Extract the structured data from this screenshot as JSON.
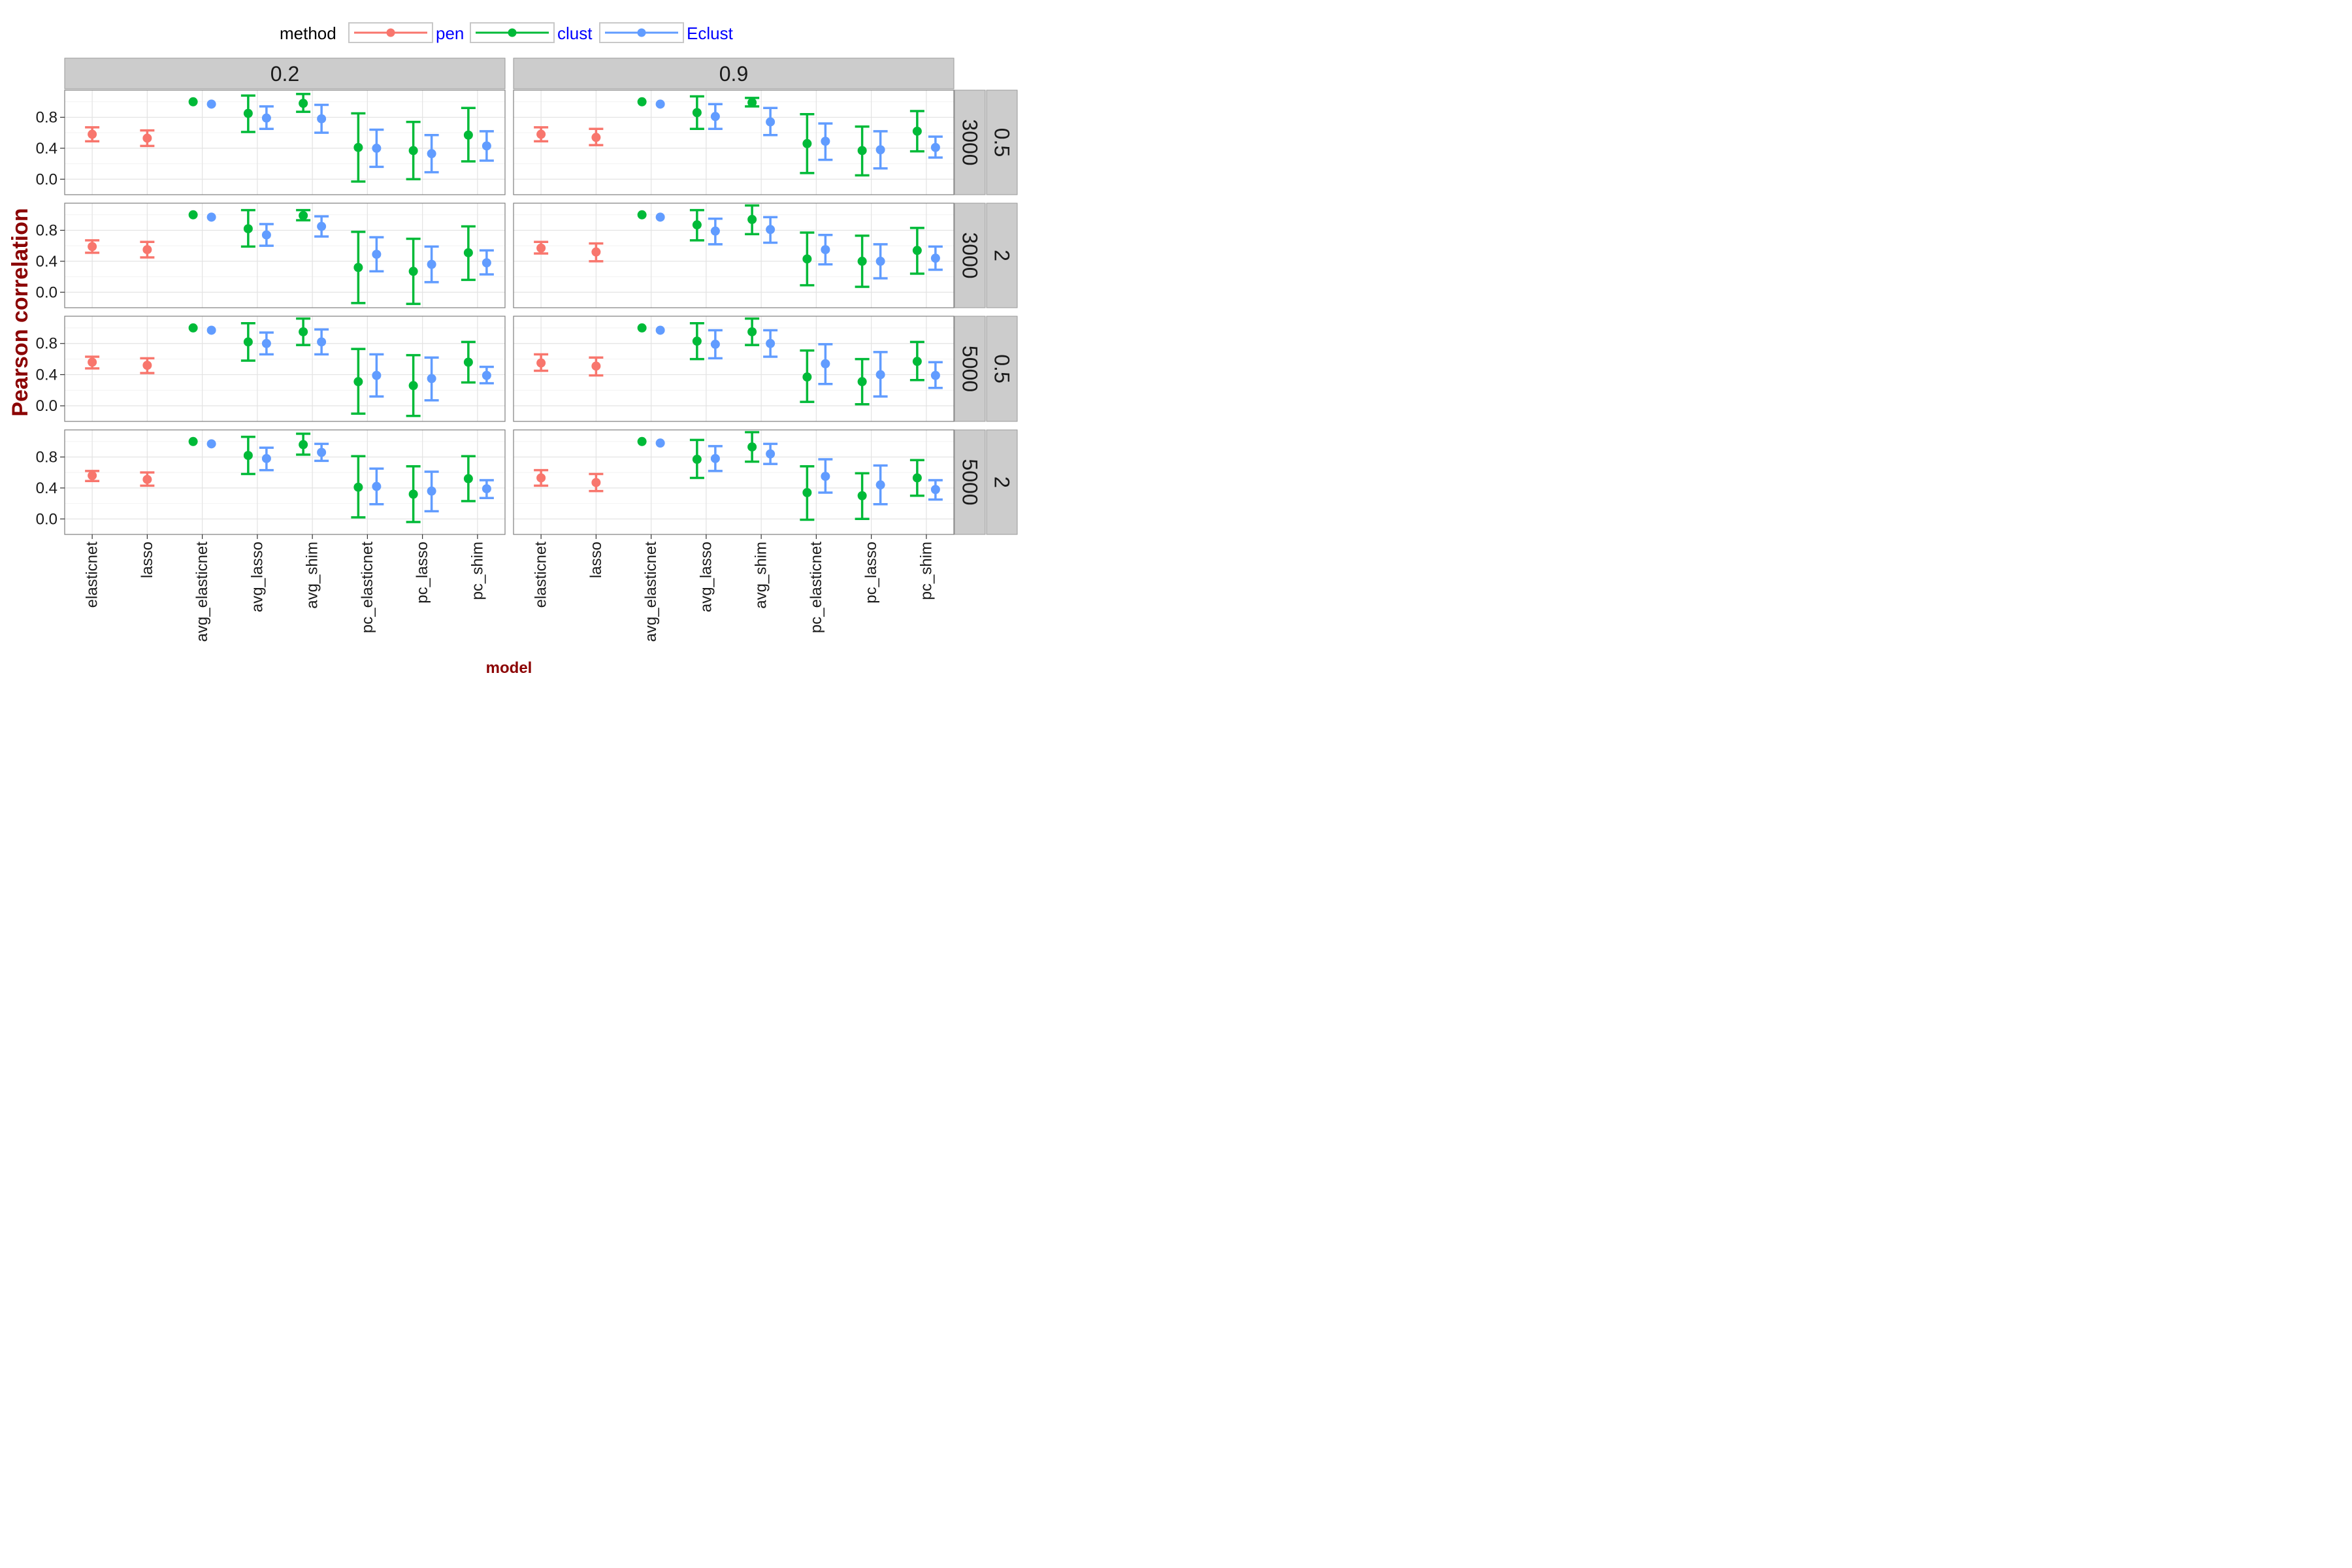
{
  "chart_data": {
    "type": "scatter",
    "subtype": "point-with-errorbars, faceted grid",
    "xlabel": "model",
    "ylabel": "Pearson correlation",
    "ylim": [
      -0.2,
      1.15
    ],
    "y_ticks": [
      "0.0",
      "0.4",
      "0.8"
    ],
    "y_tick_values": [
      0.0,
      0.4,
      0.8
    ],
    "grid": true,
    "legend": {
      "title": "method",
      "position": "top",
      "entries": [
        {
          "label": "pen",
          "color": "#F8766D"
        },
        {
          "label": "clust",
          "color": "#00BA38"
        },
        {
          "label": "Eclust",
          "color": "#619CFF"
        }
      ]
    },
    "categories": [
      "elasticnet",
      "lasso",
      "avg_elasticnet",
      "avg_lasso",
      "avg_shim",
      "pc_elasticnet",
      "pc_lasso",
      "pc_shim"
    ],
    "column_facets": [
      "0.2",
      "0.9"
    ],
    "row_facets": [
      {
        "outer": "0.5",
        "inner": "3000"
      },
      {
        "outer": "2",
        "inner": "3000"
      },
      {
        "outer": "0.5",
        "inner": "5000"
      },
      {
        "outer": "2",
        "inner": "5000"
      }
    ],
    "panels": [
      {
        "row": 0,
        "col": 0,
        "points": [
          {
            "model": "elasticnet",
            "method": "pen",
            "y": 0.58,
            "lo": 0.49,
            "hi": 0.67
          },
          {
            "model": "lasso",
            "method": "pen",
            "y": 0.53,
            "lo": 0.43,
            "hi": 0.63
          },
          {
            "model": "avg_elasticnet",
            "method": "clust",
            "y": 1.0,
            "lo": 1.0,
            "hi": 1.0
          },
          {
            "model": "avg_elasticnet",
            "method": "Eclust",
            "y": 0.97,
            "lo": 0.97,
            "hi": 0.97
          },
          {
            "model": "avg_lasso",
            "method": "clust",
            "y": 0.85,
            "lo": 0.61,
            "hi": 1.08
          },
          {
            "model": "avg_lasso",
            "method": "Eclust",
            "y": 0.79,
            "lo": 0.65,
            "hi": 0.94
          },
          {
            "model": "avg_shim",
            "method": "clust",
            "y": 0.98,
            "lo": 0.87,
            "hi": 1.1
          },
          {
            "model": "avg_shim",
            "method": "Eclust",
            "y": 0.78,
            "lo": 0.6,
            "hi": 0.96
          },
          {
            "model": "pc_elasticnet",
            "method": "clust",
            "y": 0.41,
            "lo": -0.03,
            "hi": 0.85
          },
          {
            "model": "pc_elasticnet",
            "method": "Eclust",
            "y": 0.4,
            "lo": 0.16,
            "hi": 0.64
          },
          {
            "model": "pc_lasso",
            "method": "clust",
            "y": 0.37,
            "lo": 0.0,
            "hi": 0.74
          },
          {
            "model": "pc_lasso",
            "method": "Eclust",
            "y": 0.33,
            "lo": 0.09,
            "hi": 0.57
          },
          {
            "model": "pc_shim",
            "method": "clust",
            "y": 0.57,
            "lo": 0.23,
            "hi": 0.92
          },
          {
            "model": "pc_shim",
            "method": "Eclust",
            "y": 0.43,
            "lo": 0.24,
            "hi": 0.62
          }
        ]
      },
      {
        "row": 0,
        "col": 1,
        "points": [
          {
            "model": "elasticnet",
            "method": "pen",
            "y": 0.58,
            "lo": 0.49,
            "hi": 0.67
          },
          {
            "model": "lasso",
            "method": "pen",
            "y": 0.54,
            "lo": 0.44,
            "hi": 0.65
          },
          {
            "model": "avg_elasticnet",
            "method": "clust",
            "y": 1.0,
            "lo": 1.0,
            "hi": 1.0
          },
          {
            "model": "avg_elasticnet",
            "method": "Eclust",
            "y": 0.97,
            "lo": 0.97,
            "hi": 0.97
          },
          {
            "model": "avg_lasso",
            "method": "clust",
            "y": 0.86,
            "lo": 0.65,
            "hi": 1.07
          },
          {
            "model": "avg_lasso",
            "method": "Eclust",
            "y": 0.81,
            "lo": 0.65,
            "hi": 0.97
          },
          {
            "model": "avg_shim",
            "method": "clust",
            "y": 0.99,
            "lo": 0.94,
            "hi": 1.05
          },
          {
            "model": "avg_shim",
            "method": "Eclust",
            "y": 0.74,
            "lo": 0.57,
            "hi": 0.92
          },
          {
            "model": "pc_elasticnet",
            "method": "clust",
            "y": 0.46,
            "lo": 0.08,
            "hi": 0.84
          },
          {
            "model": "pc_elasticnet",
            "method": "Eclust",
            "y": 0.49,
            "lo": 0.25,
            "hi": 0.72
          },
          {
            "model": "pc_lasso",
            "method": "clust",
            "y": 0.37,
            "lo": 0.05,
            "hi": 0.68
          },
          {
            "model": "pc_lasso",
            "method": "Eclust",
            "y": 0.38,
            "lo": 0.14,
            "hi": 0.62
          },
          {
            "model": "pc_shim",
            "method": "clust",
            "y": 0.62,
            "lo": 0.36,
            "hi": 0.88
          },
          {
            "model": "pc_shim",
            "method": "Eclust",
            "y": 0.41,
            "lo": 0.28,
            "hi": 0.55
          }
        ]
      },
      {
        "row": 1,
        "col": 0,
        "points": [
          {
            "model": "elasticnet",
            "method": "pen",
            "y": 0.59,
            "lo": 0.51,
            "hi": 0.67
          },
          {
            "model": "lasso",
            "method": "pen",
            "y": 0.55,
            "lo": 0.45,
            "hi": 0.65
          },
          {
            "model": "avg_elasticnet",
            "method": "clust",
            "y": 1.0,
            "lo": 1.0,
            "hi": 1.0
          },
          {
            "model": "avg_elasticnet",
            "method": "Eclust",
            "y": 0.97,
            "lo": 0.97,
            "hi": 0.97
          },
          {
            "model": "avg_lasso",
            "method": "clust",
            "y": 0.82,
            "lo": 0.59,
            "hi": 1.06
          },
          {
            "model": "avg_lasso",
            "method": "Eclust",
            "y": 0.74,
            "lo": 0.6,
            "hi": 0.88
          },
          {
            "model": "avg_shim",
            "method": "clust",
            "y": 0.99,
            "lo": 0.93,
            "hi": 1.06
          },
          {
            "model": "avg_shim",
            "method": "Eclust",
            "y": 0.85,
            "lo": 0.72,
            "hi": 0.98
          },
          {
            "model": "pc_elasticnet",
            "method": "clust",
            "y": 0.32,
            "lo": -0.14,
            "hi": 0.78
          },
          {
            "model": "pc_elasticnet",
            "method": "Eclust",
            "y": 0.49,
            "lo": 0.27,
            "hi": 0.71
          },
          {
            "model": "pc_lasso",
            "method": "clust",
            "y": 0.27,
            "lo": -0.15,
            "hi": 0.69
          },
          {
            "model": "pc_lasso",
            "method": "Eclust",
            "y": 0.36,
            "lo": 0.13,
            "hi": 0.59
          },
          {
            "model": "pc_shim",
            "method": "clust",
            "y": 0.51,
            "lo": 0.16,
            "hi": 0.85
          },
          {
            "model": "pc_shim",
            "method": "Eclust",
            "y": 0.38,
            "lo": 0.23,
            "hi": 0.54
          }
        ]
      },
      {
        "row": 1,
        "col": 1,
        "points": [
          {
            "model": "elasticnet",
            "method": "pen",
            "y": 0.57,
            "lo": 0.5,
            "hi": 0.65
          },
          {
            "model": "lasso",
            "method": "pen",
            "y": 0.52,
            "lo": 0.4,
            "hi": 0.63
          },
          {
            "model": "avg_elasticnet",
            "method": "clust",
            "y": 1.0,
            "lo": 1.0,
            "hi": 1.0
          },
          {
            "model": "avg_elasticnet",
            "method": "Eclust",
            "y": 0.97,
            "lo": 0.97,
            "hi": 0.97
          },
          {
            "model": "avg_lasso",
            "method": "clust",
            "y": 0.87,
            "lo": 0.67,
            "hi": 1.06
          },
          {
            "model": "avg_lasso",
            "method": "Eclust",
            "y": 0.79,
            "lo": 0.62,
            "hi": 0.95
          },
          {
            "model": "avg_shim",
            "method": "clust",
            "y": 0.94,
            "lo": 0.75,
            "hi": 1.12
          },
          {
            "model": "avg_shim",
            "method": "Eclust",
            "y": 0.81,
            "lo": 0.64,
            "hi": 0.97
          },
          {
            "model": "pc_elasticnet",
            "method": "clust",
            "y": 0.43,
            "lo": 0.09,
            "hi": 0.77
          },
          {
            "model": "pc_elasticnet",
            "method": "Eclust",
            "y": 0.55,
            "lo": 0.36,
            "hi": 0.74
          },
          {
            "model": "pc_lasso",
            "method": "clust",
            "y": 0.4,
            "lo": 0.07,
            "hi": 0.73
          },
          {
            "model": "pc_lasso",
            "method": "Eclust",
            "y": 0.4,
            "lo": 0.18,
            "hi": 0.62
          },
          {
            "model": "pc_shim",
            "method": "clust",
            "y": 0.54,
            "lo": 0.24,
            "hi": 0.83
          },
          {
            "model": "pc_shim",
            "method": "Eclust",
            "y": 0.44,
            "lo": 0.29,
            "hi": 0.59
          }
        ]
      },
      {
        "row": 2,
        "col": 0,
        "points": [
          {
            "model": "elasticnet",
            "method": "pen",
            "y": 0.56,
            "lo": 0.48,
            "hi": 0.63
          },
          {
            "model": "lasso",
            "method": "pen",
            "y": 0.52,
            "lo": 0.42,
            "hi": 0.61
          },
          {
            "model": "avg_elasticnet",
            "method": "clust",
            "y": 1.0,
            "lo": 1.0,
            "hi": 1.0
          },
          {
            "model": "avg_elasticnet",
            "method": "Eclust",
            "y": 0.97,
            "lo": 0.97,
            "hi": 0.97
          },
          {
            "model": "avg_lasso",
            "method": "clust",
            "y": 0.82,
            "lo": 0.58,
            "hi": 1.06
          },
          {
            "model": "avg_lasso",
            "method": "Eclust",
            "y": 0.8,
            "lo": 0.66,
            "hi": 0.94
          },
          {
            "model": "avg_shim",
            "method": "clust",
            "y": 0.95,
            "lo": 0.78,
            "hi": 1.12
          },
          {
            "model": "avg_shim",
            "method": "Eclust",
            "y": 0.82,
            "lo": 0.66,
            "hi": 0.98
          },
          {
            "model": "pc_elasticnet",
            "method": "clust",
            "y": 0.31,
            "lo": -0.1,
            "hi": 0.73
          },
          {
            "model": "pc_elasticnet",
            "method": "Eclust",
            "y": 0.39,
            "lo": 0.12,
            "hi": 0.66
          },
          {
            "model": "pc_lasso",
            "method": "clust",
            "y": 0.26,
            "lo": -0.13,
            "hi": 0.65
          },
          {
            "model": "pc_lasso",
            "method": "Eclust",
            "y": 0.35,
            "lo": 0.07,
            "hi": 0.62
          },
          {
            "model": "pc_shim",
            "method": "clust",
            "y": 0.56,
            "lo": 0.3,
            "hi": 0.82
          },
          {
            "model": "pc_shim",
            "method": "Eclust",
            "y": 0.39,
            "lo": 0.29,
            "hi": 0.5
          }
        ]
      },
      {
        "row": 2,
        "col": 1,
        "points": [
          {
            "model": "elasticnet",
            "method": "pen",
            "y": 0.55,
            "lo": 0.45,
            "hi": 0.66
          },
          {
            "model": "lasso",
            "method": "pen",
            "y": 0.51,
            "lo": 0.39,
            "hi": 0.62
          },
          {
            "model": "avg_elasticnet",
            "method": "clust",
            "y": 1.0,
            "lo": 1.0,
            "hi": 1.0
          },
          {
            "model": "avg_elasticnet",
            "method": "Eclust",
            "y": 0.97,
            "lo": 0.97,
            "hi": 0.97
          },
          {
            "model": "avg_lasso",
            "method": "clust",
            "y": 0.83,
            "lo": 0.6,
            "hi": 1.06
          },
          {
            "model": "avg_lasso",
            "method": "Eclust",
            "y": 0.79,
            "lo": 0.61,
            "hi": 0.97
          },
          {
            "model": "avg_shim",
            "method": "clust",
            "y": 0.95,
            "lo": 0.78,
            "hi": 1.12
          },
          {
            "model": "avg_shim",
            "method": "Eclust",
            "y": 0.8,
            "lo": 0.63,
            "hi": 0.97
          },
          {
            "model": "pc_elasticnet",
            "method": "clust",
            "y": 0.37,
            "lo": 0.05,
            "hi": 0.71
          },
          {
            "model": "pc_elasticnet",
            "method": "Eclust",
            "y": 0.54,
            "lo": 0.28,
            "hi": 0.79
          },
          {
            "model": "pc_lasso",
            "method": "clust",
            "y": 0.31,
            "lo": 0.02,
            "hi": 0.6
          },
          {
            "model": "pc_lasso",
            "method": "Eclust",
            "y": 0.4,
            "lo": 0.12,
            "hi": 0.69
          },
          {
            "model": "pc_shim",
            "method": "clust",
            "y": 0.57,
            "lo": 0.33,
            "hi": 0.82
          },
          {
            "model": "pc_shim",
            "method": "Eclust",
            "y": 0.39,
            "lo": 0.23,
            "hi": 0.56
          }
        ]
      },
      {
        "row": 3,
        "col": 0,
        "points": [
          {
            "model": "elasticnet",
            "method": "pen",
            "y": 0.56,
            "lo": 0.49,
            "hi": 0.62
          },
          {
            "model": "lasso",
            "method": "pen",
            "y": 0.51,
            "lo": 0.43,
            "hi": 0.6
          },
          {
            "model": "avg_elasticnet",
            "method": "clust",
            "y": 1.0,
            "lo": 1.0,
            "hi": 1.0
          },
          {
            "model": "avg_elasticnet",
            "method": "Eclust",
            "y": 0.97,
            "lo": 0.97,
            "hi": 0.97
          },
          {
            "model": "avg_lasso",
            "method": "clust",
            "y": 0.82,
            "lo": 0.58,
            "hi": 1.06
          },
          {
            "model": "avg_lasso",
            "method": "Eclust",
            "y": 0.78,
            "lo": 0.63,
            "hi": 0.92
          },
          {
            "model": "avg_shim",
            "method": "clust",
            "y": 0.96,
            "lo": 0.83,
            "hi": 1.1
          },
          {
            "model": "avg_shim",
            "method": "Eclust",
            "y": 0.86,
            "lo": 0.75,
            "hi": 0.97
          },
          {
            "model": "pc_elasticnet",
            "method": "clust",
            "y": 0.41,
            "lo": 0.02,
            "hi": 0.81
          },
          {
            "model": "pc_elasticnet",
            "method": "Eclust",
            "y": 0.42,
            "lo": 0.19,
            "hi": 0.65
          },
          {
            "model": "pc_lasso",
            "method": "clust",
            "y": 0.32,
            "lo": -0.04,
            "hi": 0.68
          },
          {
            "model": "pc_lasso",
            "method": "Eclust",
            "y": 0.36,
            "lo": 0.1,
            "hi": 0.61
          },
          {
            "model": "pc_shim",
            "method": "clust",
            "y": 0.52,
            "lo": 0.23,
            "hi": 0.81
          },
          {
            "model": "pc_shim",
            "method": "Eclust",
            "y": 0.39,
            "lo": 0.27,
            "hi": 0.5
          }
        ]
      },
      {
        "row": 3,
        "col": 1,
        "points": [
          {
            "model": "elasticnet",
            "method": "pen",
            "y": 0.53,
            "lo": 0.43,
            "hi": 0.63
          },
          {
            "model": "lasso",
            "method": "pen",
            "y": 0.47,
            "lo": 0.36,
            "hi": 0.58
          },
          {
            "model": "avg_elasticnet",
            "method": "clust",
            "y": 1.0,
            "lo": 1.0,
            "hi": 1.0
          },
          {
            "model": "avg_elasticnet",
            "method": "Eclust",
            "y": 0.98,
            "lo": 0.98,
            "hi": 0.98
          },
          {
            "model": "avg_lasso",
            "method": "clust",
            "y": 0.77,
            "lo": 0.53,
            "hi": 1.02
          },
          {
            "model": "avg_lasso",
            "method": "Eclust",
            "y": 0.78,
            "lo": 0.62,
            "hi": 0.94
          },
          {
            "model": "avg_shim",
            "method": "clust",
            "y": 0.93,
            "lo": 0.74,
            "hi": 1.12
          },
          {
            "model": "avg_shim",
            "method": "Eclust",
            "y": 0.84,
            "lo": 0.71,
            "hi": 0.97
          },
          {
            "model": "pc_elasticnet",
            "method": "clust",
            "y": 0.34,
            "lo": -0.01,
            "hi": 0.68
          },
          {
            "model": "pc_elasticnet",
            "method": "Eclust",
            "y": 0.55,
            "lo": 0.34,
            "hi": 0.77
          },
          {
            "model": "pc_lasso",
            "method": "clust",
            "y": 0.3,
            "lo": 0.0,
            "hi": 0.59
          },
          {
            "model": "pc_lasso",
            "method": "Eclust",
            "y": 0.44,
            "lo": 0.19,
            "hi": 0.69
          },
          {
            "model": "pc_shim",
            "method": "clust",
            "y": 0.53,
            "lo": 0.3,
            "hi": 0.76
          },
          {
            "model": "pc_shim",
            "method": "Eclust",
            "y": 0.38,
            "lo": 0.25,
            "hi": 0.5
          }
        ]
      }
    ]
  }
}
